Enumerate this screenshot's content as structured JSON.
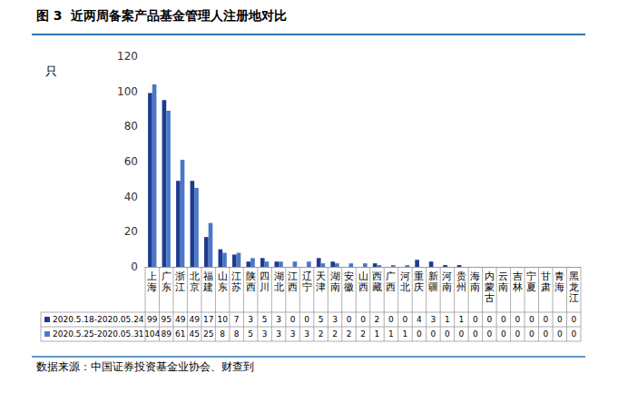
{
  "chart_data": {
    "type": "bar",
    "title": "图 3  近两周备案产品基金管理人注册地对比",
    "y_label": "只",
    "source": "数据来源：中国证券投资基金业协会、财查到",
    "categories": [
      "上海",
      "广东",
      "浙江",
      "北京",
      "福建",
      "山东",
      "江苏",
      "陕西",
      "四川",
      "湖北",
      "江西",
      "辽宁",
      "天津",
      "湖南",
      "安徽",
      "山西",
      "西藏",
      "广西",
      "河北",
      "重庆",
      "新疆",
      "河南",
      "贵州",
      "海南",
      "内蒙古",
      "云南",
      "吉林",
      "宁夏",
      "甘肃",
      "青海",
      "黑龙江"
    ],
    "series": [
      {
        "name": "2020.5.18-2020.05.24",
        "color": "#1f3b8f",
        "values": [
          99,
          95,
          49,
          49,
          17,
          10,
          7,
          3,
          5,
          3,
          0,
          0,
          5,
          3,
          0,
          0,
          2,
          0,
          0,
          4,
          3,
          1,
          1,
          0,
          0,
          0,
          0,
          0,
          0,
          0,
          0
        ]
      },
      {
        "name": "2020.5.25-2020.05.31",
        "color": "#4a78c8",
        "values": [
          104,
          89,
          61,
          45,
          25,
          8,
          8,
          5,
          3,
          3,
          3,
          3,
          2,
          2,
          2,
          2,
          1,
          1,
          1,
          0,
          0,
          0,
          0,
          0,
          0,
          0,
          0,
          0,
          0,
          0,
          0
        ]
      }
    ],
    "ylim": [
      0,
      120
    ],
    "yticks": [
      0,
      20,
      40,
      60,
      80,
      100,
      120
    ],
    "grid": false
  }
}
